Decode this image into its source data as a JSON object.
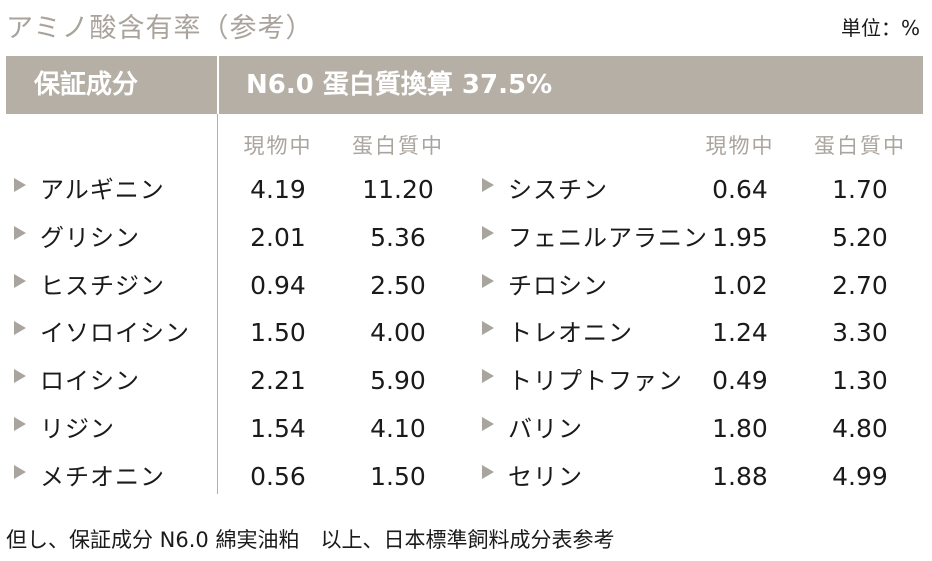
{
  "title": "アミノ酸含有率（参考）",
  "unit": "単位：%",
  "header": {
    "left": "保証成分",
    "right": "N6.0 蛋白質換算 37.5%"
  },
  "col_headers": {
    "genbutsu": "現物中",
    "tanpaku": "蛋白質中"
  },
  "left_rows": [
    {
      "name": "アルギニン",
      "genbutsu": "4.19",
      "tanpaku": "11.20"
    },
    {
      "name": "グリシン",
      "genbutsu": "2.01",
      "tanpaku": "5.36"
    },
    {
      "name": "ヒスチジン",
      "genbutsu": "0.94",
      "tanpaku": "2.50"
    },
    {
      "name": "イソロイシン",
      "genbutsu": "1.50",
      "tanpaku": "4.00"
    },
    {
      "name": "ロイシン",
      "genbutsu": "2.21",
      "tanpaku": "5.90"
    },
    {
      "name": "リジン",
      "genbutsu": "1.54",
      "tanpaku": "4.10"
    },
    {
      "name": "メチオニン",
      "genbutsu": "0.56",
      "tanpaku": "1.50"
    }
  ],
  "right_rows": [
    {
      "name": "シスチン",
      "genbutsu": "0.64",
      "tanpaku": "1.70"
    },
    {
      "name": "フェニルアラニン",
      "genbutsu": "1.95",
      "tanpaku": "5.20"
    },
    {
      "name": "チロシン",
      "genbutsu": "1.02",
      "tanpaku": "2.70"
    },
    {
      "name": "トレオニン",
      "genbutsu": "1.24",
      "tanpaku": "3.30"
    },
    {
      "name": "トリプトファン",
      "genbutsu": "0.49",
      "tanpaku": "1.30"
    },
    {
      "name": "バリン",
      "genbutsu": "1.80",
      "tanpaku": "4.80"
    },
    {
      "name": "セリン",
      "genbutsu": "1.88",
      "tanpaku": "4.99"
    }
  ],
  "footer": "但し、保証成分 N6.0 綿実油粕　以上、日本標準飼料成分表参考"
}
